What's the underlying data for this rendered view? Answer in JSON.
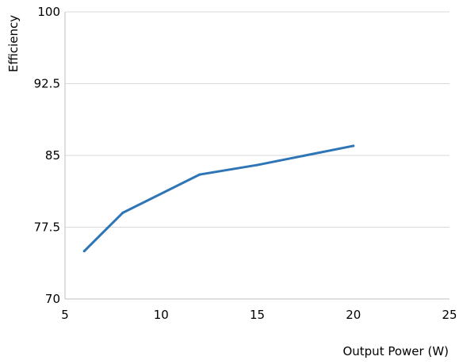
{
  "chart_data": {
    "type": "line",
    "title": "",
    "xlabel": "Output Power (W)",
    "ylabel": "Efficiency",
    "xlim": [
      5,
      25
    ],
    "ylim": [
      70,
      100
    ],
    "xticks": [
      5,
      10,
      15,
      20,
      25
    ],
    "yticks": [
      70,
      77.5,
      85,
      92.5,
      100
    ],
    "xtick_labels": [
      "5",
      "10",
      "15",
      "20",
      "25"
    ],
    "ytick_labels": [
      "70",
      "77.5",
      "85",
      "92.5",
      "100"
    ],
    "grid": "horizontal",
    "legend": "none",
    "series": [
      {
        "color": "#2e75b6",
        "x": [
          6,
          8,
          12,
          15,
          20
        ],
        "y": [
          75,
          79,
          83,
          84,
          86
        ]
      }
    ]
  }
}
